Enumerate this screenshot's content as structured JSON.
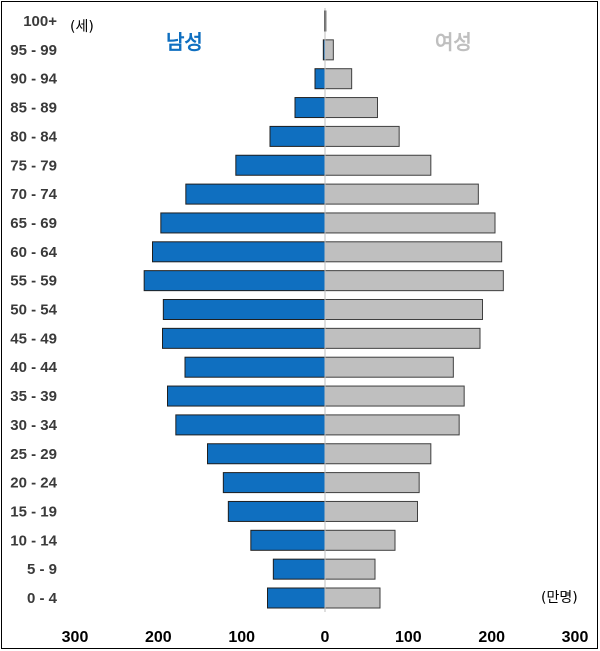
{
  "chart_data": {
    "type": "bar",
    "subtype": "population-pyramid",
    "categories": [
      "100+",
      "95 - 99",
      "90 - 94",
      "85 - 89",
      "80 - 84",
      "75 - 79",
      "70 - 74",
      "65 - 69",
      "60 - 64",
      "55 - 59",
      "50 - 54",
      "45 - 49",
      "40 - 44",
      "35 - 39",
      "30 - 34",
      "25 - 29",
      "20 - 24",
      "15 - 19",
      "10 - 14",
      "5 - 9",
      "0 - 4"
    ],
    "series": [
      {
        "name": "남성",
        "color": "#0f6fc0",
        "side": "left",
        "values": [
          0.5,
          2,
          12,
          36,
          66,
          107,
          167,
          197,
          207,
          217,
          194,
          195,
          168,
          189,
          179,
          141,
          122,
          116,
          89,
          62,
          69
        ]
      },
      {
        "name": "여성",
        "color": "#bfbfbf",
        "side": "right",
        "values": [
          1,
          10,
          32,
          63,
          89,
          127,
          184,
          204,
          212,
          214,
          189,
          186,
          154,
          167,
          161,
          127,
          113,
          111,
          84,
          60,
          66
        ]
      }
    ],
    "x_ticks": [
      "300",
      "200",
      "100",
      "0",
      "100",
      "200",
      "300"
    ],
    "xlim": [
      -300,
      300
    ],
    "y_unit_label": "(세)",
    "x_unit_label": "(만명)",
    "grid": false,
    "legend": "top, series names over each side"
  }
}
